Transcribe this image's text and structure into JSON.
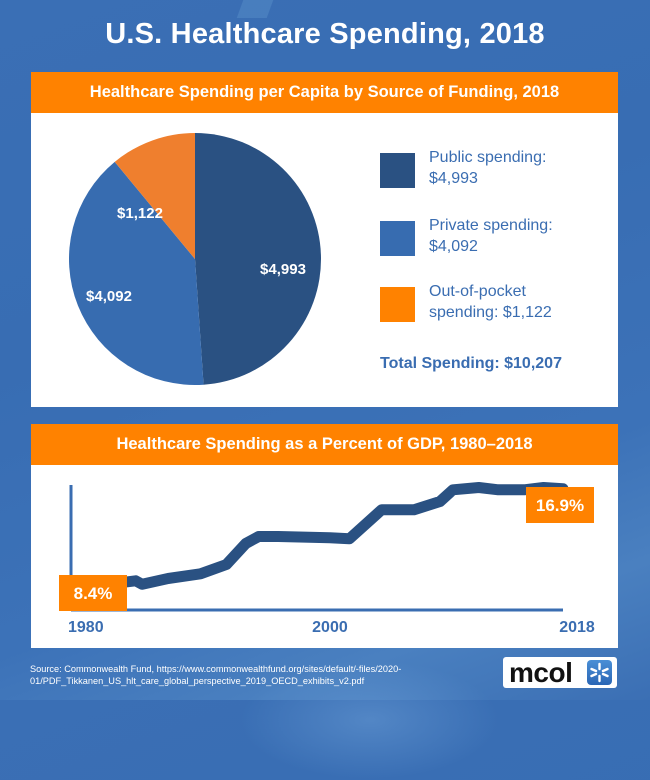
{
  "title": "U.S. Healthcare Spending, 2018",
  "colors": {
    "background": "#3a6fb5",
    "header_orange": "#ff8200",
    "public": "#2a5182",
    "private": "#376cb0",
    "out_of_pocket": "#ef7f2e",
    "legend_out_of_pocket": "#ff8200",
    "line": "#2a5182",
    "axis": "#3a6db1",
    "text_blue": "#3a6db1"
  },
  "chart_data": [
    {
      "type": "pie",
      "title": "Healthcare Spending per Capita by Source of Funding, 2018",
      "slices": [
        {
          "key": "public",
          "name": "Public spending",
          "value": 4993,
          "label": "$4,993",
          "legend_text": "Public spending: $4,993"
        },
        {
          "key": "private",
          "name": "Private spending",
          "value": 4092,
          "label": "$4,092",
          "legend_text": "Private spending: $4,092"
        },
        {
          "key": "out_of_pocket",
          "name": "Out-of-pocket spending",
          "value": 1122,
          "label": "$1,122",
          "legend_text": "Out-of-pocket spending: $1,122"
        }
      ],
      "start": "top",
      "direction": "clockwise",
      "legend_placement": "right",
      "total_label": "Total Spending: $10,207",
      "total": 10207
    },
    {
      "type": "line",
      "title": "Healthcare Spending as a Percent of GDP, 1980–2018",
      "xlabel": "",
      "ylabel": "",
      "x_ticks": [
        1980,
        2000,
        2018
      ],
      "x_tick_labels": [
        "1980",
        "2000",
        "2018"
      ],
      "xlim": [
        1980,
        2018
      ],
      "ylim": [
        6.5,
        18.5
      ],
      "grid": false,
      "series": [
        {
          "name": "Healthcare spending (% of GDP)",
          "x": [
            1980,
            1982,
            1985,
            1985.5,
            1987.5,
            1990,
            1992,
            1993.5,
            1994.5,
            1996,
            2000,
            2001.5,
            2004,
            2006.5,
            2008.5,
            2009.5,
            2011.5,
            2013,
            2015,
            2016.5,
            2018
          ],
          "y": [
            8.4,
            8.6,
            9.0,
            8.7,
            9.2,
            9.6,
            10.4,
            12.2,
            12.8,
            12.8,
            12.7,
            12.6,
            15.1,
            15.1,
            15.8,
            16.8,
            17.0,
            16.8,
            16.8,
            17.0,
            16.9
          ]
        }
      ],
      "annotations": [
        {
          "x": 1980,
          "y": 8.4,
          "text": "8.4%"
        },
        {
          "x": 2018,
          "y": 16.9,
          "text": "16.9%"
        }
      ]
    }
  ],
  "source": "Source: Commonwealth Fund, https://www.commonwealthfund.org/sites/default/-files/2020-01/PDF_Tikkanen_US_hlt_care_global_perspective_2019_OECD_exhibits_v2.pdf",
  "logo": {
    "text": "mcol",
    "icon": "asterisk-icon"
  }
}
